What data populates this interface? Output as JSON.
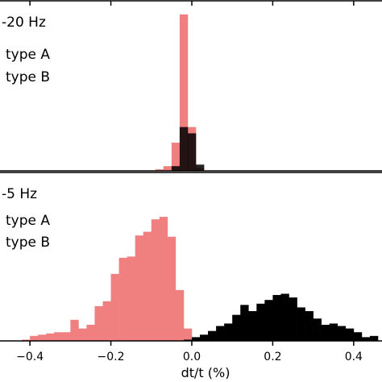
{
  "chart_data": [
    {
      "type": "bar",
      "panel_label": "-20 Hz",
      "legend": [
        "type A",
        "type B"
      ],
      "x_bin_edges": [
        -0.09,
        -0.07,
        -0.05,
        -0.03,
        -0.01,
        0.01,
        0.03,
        0.05
      ],
      "series": [
        {
          "name": "type A",
          "color": "#f08080",
          "alpha": 1.0,
          "values": [
            0.01,
            0.03,
            0.18,
            1.0,
            0.28,
            0.02,
            0.0
          ]
        },
        {
          "name": "type B",
          "color": "#000000",
          "alpha": 0.85,
          "values": [
            0.0,
            0.0,
            0.03,
            0.28,
            0.24,
            0.04,
            0.0
          ]
        }
      ],
      "ylim": [
        0,
        1.02
      ]
    },
    {
      "type": "bar",
      "panel_label": "-5 Hz",
      "legend": [
        "type A",
        "type B"
      ],
      "xlabel": "dt/t (%)",
      "x_ticks": [
        -0.4,
        -0.2,
        0.0,
        0.2,
        0.4
      ],
      "x_tick_labels": [
        "−0.4",
        "−0.2",
        "0.0",
        "0.2",
        "0.4"
      ],
      "xlim": [
        -0.46,
        0.47
      ],
      "x_bin_edges": [
        -0.46,
        -0.44,
        -0.42,
        -0.4,
        -0.38,
        -0.36,
        -0.34,
        -0.32,
        -0.3,
        -0.28,
        -0.26,
        -0.24,
        -0.22,
        -0.2,
        -0.18,
        -0.16,
        -0.14,
        -0.12,
        -0.1,
        -0.08,
        -0.06,
        -0.04,
        -0.02,
        0.0,
        0.02,
        0.04,
        0.06,
        0.08,
        0.1,
        0.12,
        0.14,
        0.16,
        0.18,
        0.2,
        0.22,
        0.24,
        0.26,
        0.28,
        0.3,
        0.32,
        0.34,
        0.36,
        0.38,
        0.4,
        0.42,
        0.44,
        0.46
      ],
      "series": [
        {
          "name": "type A",
          "color": "#f08080",
          "alpha": 1.0,
          "values": [
            0.0,
            0.0,
            0.01,
            0.04,
            0.05,
            0.06,
            0.07,
            0.07,
            0.17,
            0.1,
            0.13,
            0.28,
            0.32,
            0.54,
            0.67,
            0.68,
            0.85,
            0.88,
            0.98,
            1.0,
            0.84,
            0.41,
            0.1,
            0.03,
            0.0,
            0.0,
            0.0,
            0.0,
            0.0,
            0.0,
            0.0,
            0.0,
            0.0,
            0.0,
            0.0,
            0.0,
            0.0,
            0.0,
            0.0,
            0.0,
            0.0,
            0.0,
            0.0,
            0.0,
            0.0,
            0.0
          ]
        },
        {
          "name": "type B",
          "color": "#000000",
          "alpha": 1.0,
          "values": [
            0.0,
            0.0,
            0.0,
            0.0,
            0.0,
            0.0,
            0.0,
            0.0,
            0.0,
            0.0,
            0.0,
            0.0,
            0.0,
            0.0,
            0.0,
            0.0,
            0.0,
            0.0,
            0.0,
            0.0,
            0.0,
            0.0,
            0.01,
            0.03,
            0.05,
            0.08,
            0.12,
            0.14,
            0.21,
            0.29,
            0.24,
            0.3,
            0.33,
            0.37,
            0.38,
            0.35,
            0.27,
            0.24,
            0.18,
            0.13,
            0.14,
            0.12,
            0.1,
            0.07,
            0.03,
            0.04
          ]
        }
      ],
      "ylim": [
        0,
        1.02
      ]
    }
  ]
}
